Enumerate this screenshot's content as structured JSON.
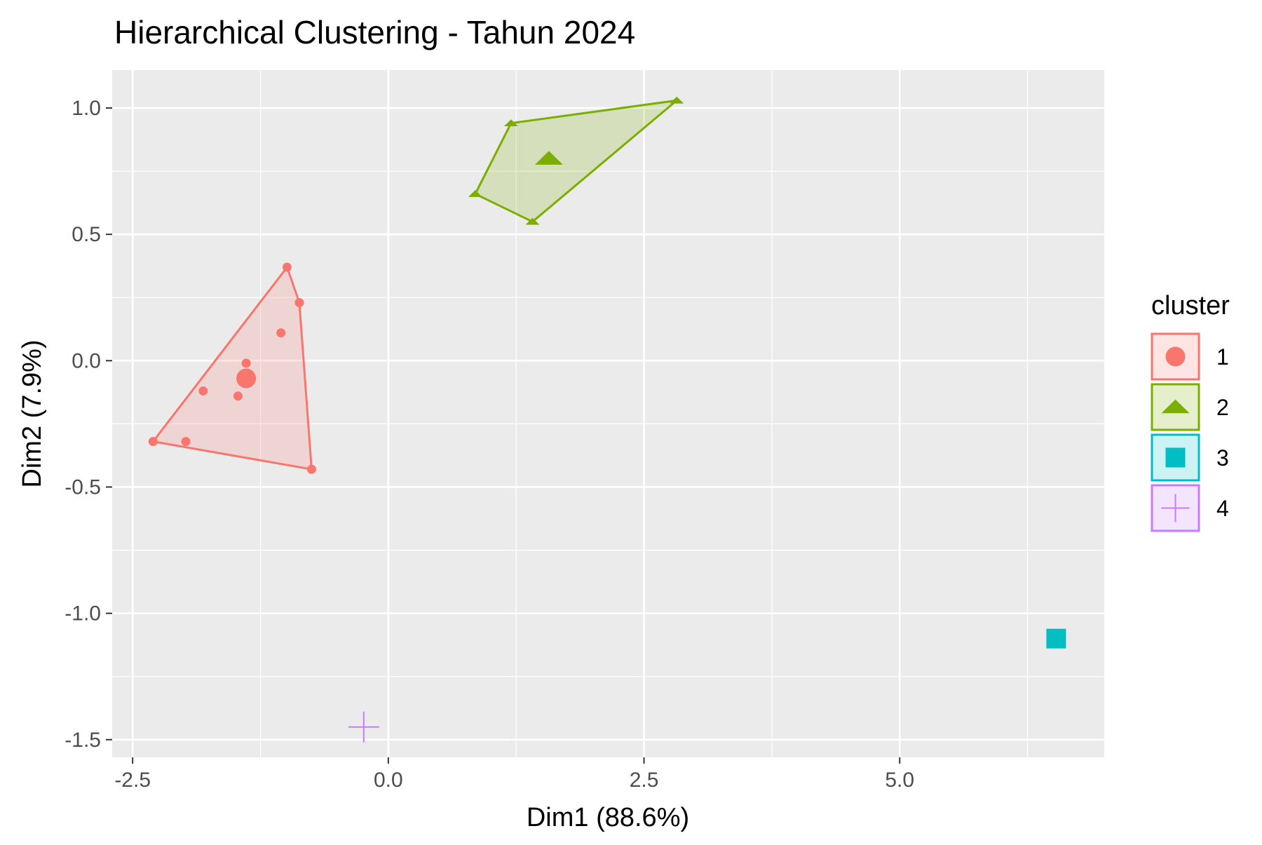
{
  "chart_data": {
    "type": "scatter",
    "title": "Hierarchical Clustering - Tahun 2024",
    "xlabel": "Dim1 (88.6%)",
    "ylabel": "Dim2 (7.9%)",
    "xlim": [
      -2.7,
      7.0
    ],
    "ylim": [
      -1.57,
      1.15
    ],
    "x_ticks": [
      -2.5,
      0.0,
      2.5,
      5.0
    ],
    "x_tick_labels": [
      "-2.5",
      "0.0",
      "2.5",
      "5.0"
    ],
    "y_ticks": [
      -1.5,
      -1.0,
      -0.5,
      0.0,
      0.5,
      1.0
    ],
    "y_tick_labels": [
      "-1.5",
      "-1.0",
      "-0.5",
      "0.0",
      "0.5",
      "1.0"
    ],
    "grid": true,
    "background": "#EBEBEB",
    "legend": {
      "title": "cluster",
      "position": "right",
      "entries": [
        {
          "label": "1",
          "shape": "circle",
          "color": "#F8766D"
        },
        {
          "label": "2",
          "shape": "triangle",
          "color": "#7CAE00"
        },
        {
          "label": "3",
          "shape": "square",
          "color": "#00BFC4"
        },
        {
          "label": "4",
          "shape": "cross",
          "color": "#C77CFF"
        }
      ]
    },
    "series": [
      {
        "name": "1",
        "shape": "circle",
        "color": "#F8766D",
        "points": [
          {
            "x": -2.3,
            "y": -0.32
          },
          {
            "x": -1.98,
            "y": -0.32
          },
          {
            "x": -1.81,
            "y": -0.12
          },
          {
            "x": -1.47,
            "y": -0.14
          },
          {
            "x": -1.39,
            "y": -0.01
          },
          {
            "x": -1.05,
            "y": 0.11
          },
          {
            "x": -0.99,
            "y": 0.37
          },
          {
            "x": -0.87,
            "y": 0.23
          },
          {
            "x": -0.75,
            "y": -0.43
          }
        ],
        "hull": [
          {
            "x": -2.3,
            "y": -0.32
          },
          {
            "x": -0.99,
            "y": 0.37
          },
          {
            "x": -0.87,
            "y": 0.23
          },
          {
            "x": -0.75,
            "y": -0.43
          }
        ],
        "centroid": {
          "x": -1.39,
          "y": -0.07
        }
      },
      {
        "name": "2",
        "shape": "triangle",
        "color": "#7CAE00",
        "points": [
          {
            "x": 0.85,
            "y": 0.66
          },
          {
            "x": 1.2,
            "y": 0.94
          },
          {
            "x": 1.41,
            "y": 0.55
          },
          {
            "x": 2.82,
            "y": 1.03
          }
        ],
        "hull": [
          {
            "x": 0.85,
            "y": 0.66
          },
          {
            "x": 1.2,
            "y": 0.94
          },
          {
            "x": 2.82,
            "y": 1.03
          },
          {
            "x": 1.41,
            "y": 0.55
          }
        ],
        "centroid": {
          "x": 1.57,
          "y": 0.8
        }
      },
      {
        "name": "3",
        "shape": "square",
        "color": "#00BFC4",
        "points": [],
        "hull": [],
        "centroid": {
          "x": 6.53,
          "y": -1.1
        }
      },
      {
        "name": "4",
        "shape": "cross",
        "color": "#C77CFF",
        "points": [],
        "hull": [],
        "centroid": {
          "x": -0.24,
          "y": -1.45
        }
      }
    ]
  }
}
